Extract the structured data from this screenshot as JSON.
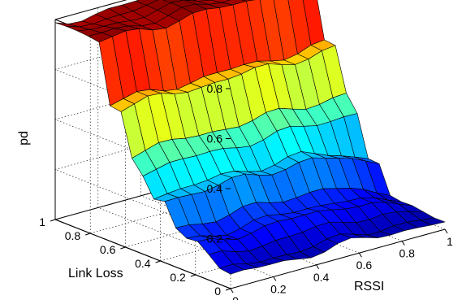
{
  "chart_data": {
    "type": "surface",
    "title": "",
    "xlabel": "RSSI",
    "ylabel": "Link Loss",
    "zlabel": "pd",
    "xlim": [
      0,
      1
    ],
    "ylim": [
      0,
      1
    ],
    "zlim": [
      0,
      0.8
    ],
    "grid": true,
    "colormap": "jet",
    "x_ticks": [
      "0",
      "0.2",
      "0.4",
      "0.6",
      "0.8",
      "1"
    ],
    "y_ticks": [
      "0",
      "0.2",
      "0.4",
      "0.6",
      "0.8",
      "1"
    ],
    "z_ticks": [
      "0.2",
      "0.4",
      "0.6",
      "0.8"
    ],
    "x": [
      0,
      0.0625,
      0.125,
      0.1875,
      0.25,
      0.3125,
      0.375,
      0.4375,
      0.5,
      0.5625,
      0.625,
      0.6875,
      0.75,
      0.8125,
      0.875,
      0.9375,
      1
    ],
    "y": [
      0,
      0.0625,
      0.125,
      0.1875,
      0.25,
      0.3125,
      0.375,
      0.4375,
      0.5,
      0.5625,
      0.625,
      0.6875,
      0.75,
      0.8125,
      0.875,
      0.9375,
      1
    ],
    "z_levels_by_linkloss": [
      {
        "y_from": 0.0,
        "y_to": 0.1,
        "pd": 0.05
      },
      {
        "y_from": 0.15,
        "y_to": 0.3,
        "pd": 0.12
      },
      {
        "y_from": 0.35,
        "y_to": 0.45,
        "pd": 0.25
      },
      {
        "y_from": 0.5,
        "y_to": 0.55,
        "pd": 0.33
      },
      {
        "y_from": 0.6,
        "y_to": 0.7,
        "pd": 0.55
      },
      {
        "y_from": 0.75,
        "y_to": 1.0,
        "pd": 0.78
      }
    ]
  }
}
